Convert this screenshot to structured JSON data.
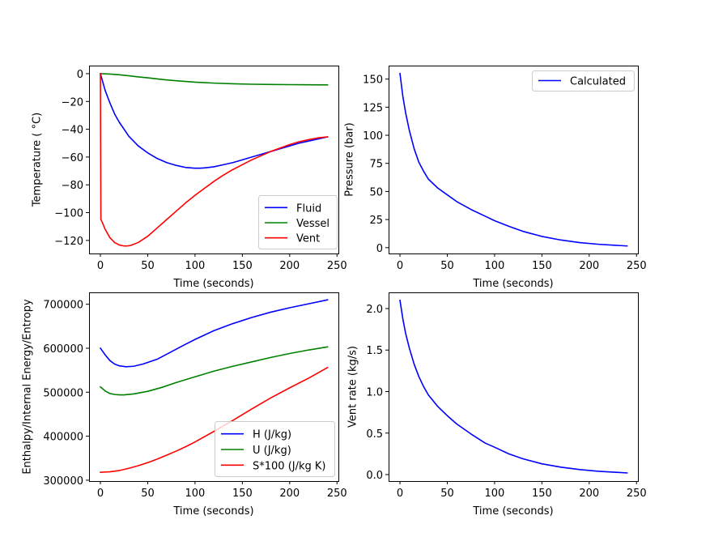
{
  "figure": {
    "background": "#ffffff"
  },
  "chart_data": [
    {
      "id": "temperature",
      "type": "line",
      "title": "",
      "xlabel": "Time (seconds)",
      "ylabel": "Temperature ( °C)",
      "xlim": [
        -12,
        251.5
      ],
      "ylim": [
        -129.4,
        5.8
      ],
      "xticks": [
        0,
        50,
        100,
        150,
        200,
        250
      ],
      "xtick_labels": [
        "0",
        "50",
        "100",
        "150",
        "200",
        "250"
      ],
      "yticks": [
        0,
        -20,
        -40,
        -60,
        -80,
        -100,
        -120
      ],
      "ytick_labels": [
        "0",
        "−20",
        "−40",
        "−60",
        "−80",
        "−100",
        "−120"
      ],
      "grid": false,
      "legend": {
        "placement": "lower-right"
      },
      "series": [
        {
          "name": "Fluid",
          "color": "#0000ff",
          "x": [
            0,
            5,
            10,
            15,
            20,
            25,
            30,
            40,
            50,
            60,
            70,
            80,
            90,
            100,
            105,
            110,
            120,
            130,
            140,
            150,
            160,
            170,
            180,
            190,
            200,
            210,
            220,
            230,
            240
          ],
          "y": [
            0,
            -12,
            -21,
            -29,
            -35,
            -40,
            -45,
            -52,
            -57,
            -61,
            -64,
            -66,
            -67.5,
            -68,
            -68,
            -67.8,
            -67,
            -65.5,
            -64,
            -62,
            -60,
            -58,
            -56,
            -54,
            -52,
            -50,
            -48.5,
            -47,
            -45.5
          ]
        },
        {
          "name": "Vessel",
          "color": "#008000",
          "x": [
            0,
            10,
            20,
            30,
            40,
            50,
            60,
            70,
            80,
            90,
            100,
            120,
            140,
            160,
            180,
            200,
            220,
            240
          ],
          "y": [
            0,
            -0.3,
            -0.8,
            -1.5,
            -2.3,
            -3,
            -3.8,
            -4.5,
            -5.1,
            -5.6,
            -6.1,
            -6.8,
            -7.3,
            -7.6,
            -7.8,
            -7.9,
            -8,
            -8.1
          ]
        },
        {
          "name": "Vent",
          "color": "#ff0000",
          "x": [
            0,
            0.5,
            2,
            5,
            10,
            15,
            20,
            25,
            28,
            32,
            40,
            50,
            60,
            70,
            80,
            90,
            100,
            110,
            120,
            130,
            140,
            150,
            160,
            170,
            180,
            190,
            200,
            210,
            220,
            230,
            240
          ],
          "y": [
            0,
            -105,
            -107,
            -112,
            -118,
            -121.5,
            -123.3,
            -124,
            -124,
            -123.6,
            -121.5,
            -117,
            -111,
            -105,
            -99,
            -93,
            -87.5,
            -82.5,
            -77.5,
            -73,
            -69,
            -65.5,
            -62,
            -59,
            -56,
            -53.5,
            -51,
            -49,
            -47.5,
            -46.2,
            -45.5
          ]
        }
      ]
    },
    {
      "id": "pressure",
      "type": "line",
      "title": "",
      "xlabel": "Time (seconds)",
      "ylabel": "Pressure (bar)",
      "xlim": [
        -12,
        251.5
      ],
      "ylim": [
        -5.2,
        162
      ],
      "xticks": [
        0,
        50,
        100,
        150,
        200,
        250
      ],
      "xtick_labels": [
        "0",
        "50",
        "100",
        "150",
        "200",
        "250"
      ],
      "yticks": [
        0,
        25,
        50,
        75,
        100,
        125,
        150
      ],
      "ytick_labels": [
        "0",
        "25",
        "50",
        "75",
        "100",
        "125",
        "150"
      ],
      "grid": false,
      "legend": {
        "placement": "upper-right"
      },
      "series": [
        {
          "name": "Calculated",
          "color": "#0000ff",
          "x": [
            0,
            3,
            6,
            10,
            15,
            20,
            25,
            30,
            40,
            50,
            60,
            75,
            90,
            100,
            115,
            130,
            150,
            170,
            190,
            210,
            225,
            240
          ],
          "y": [
            155,
            135,
            120,
            104,
            88,
            76,
            68,
            61,
            53,
            47,
            41,
            34,
            28,
            24,
            19,
            14.5,
            10,
            6.8,
            4.5,
            3,
            2.2,
            1.5
          ]
        }
      ]
    },
    {
      "id": "energy",
      "type": "line",
      "title": "",
      "xlabel": "Time (seconds)",
      "ylabel": "Enthalpy/Internal Energy/Entropy",
      "xlim": [
        -12,
        251.5
      ],
      "ylim": [
        298000,
        727000
      ],
      "xticks": [
        0,
        50,
        100,
        150,
        200,
        250
      ],
      "xtick_labels": [
        "0",
        "50",
        "100",
        "150",
        "200",
        "250"
      ],
      "yticks": [
        300000,
        400000,
        500000,
        600000,
        700000
      ],
      "ytick_labels": [
        "300000",
        "400000",
        "500000",
        "600000",
        "700000"
      ],
      "grid": false,
      "legend": {
        "placement": "lower-right"
      },
      "series": [
        {
          "name": "H (J/kg)",
          "color": "#0000ff",
          "x": [
            0,
            5,
            10,
            15,
            20,
            27,
            35,
            45,
            60,
            75,
            90,
            100,
            120,
            140,
            160,
            180,
            200,
            220,
            240
          ],
          "y": [
            600000,
            585000,
            572000,
            564000,
            560000,
            558000,
            559000,
            564000,
            575000,
            592000,
            609000,
            620000,
            640000,
            656000,
            670000,
            682000,
            692000,
            701000,
            710000
          ]
        },
        {
          "name": "U (J/kg)",
          "color": "#008000",
          "x": [
            0,
            5,
            10,
            15,
            20,
            25,
            35,
            50,
            65,
            80,
            100,
            120,
            140,
            160,
            180,
            200,
            220,
            240
          ],
          "y": [
            512000,
            503000,
            497000,
            495000,
            494000,
            494000,
            496000,
            502000,
            511000,
            522000,
            535000,
            548000,
            559000,
            569000,
            579000,
            588000,
            596000,
            603000
          ]
        },
        {
          "name": "S*100 (J/kg K)",
          "color": "#ff0000",
          "x": [
            0,
            10,
            20,
            30,
            40,
            50,
            60,
            70,
            80,
            90,
            100,
            120,
            140,
            160,
            180,
            200,
            220,
            240
          ],
          "y": [
            318000,
            319000,
            322000,
            327000,
            333000,
            340000,
            348000,
            357000,
            366000,
            376000,
            387000,
            411000,
            436000,
            462000,
            487000,
            510000,
            532000,
            556000
          ]
        }
      ]
    },
    {
      "id": "vent-rate",
      "type": "line",
      "title": "",
      "xlabel": "Time (seconds)",
      "ylabel": "Vent rate (kg/s)",
      "xlim": [
        -12,
        251.5
      ],
      "ylim": [
        -0.078,
        2.195
      ],
      "xticks": [
        0,
        50,
        100,
        150,
        200,
        250
      ],
      "xtick_labels": [
        "0",
        "50",
        "100",
        "150",
        "200",
        "250"
      ],
      "yticks": [
        0.0,
        0.5,
        1.0,
        1.5,
        2.0
      ],
      "ytick_labels": [
        "0.0",
        "0.5",
        "1.0",
        "1.5",
        "2.0"
      ],
      "grid": false,
      "legend": null,
      "series": [
        {
          "name": "Vent rate",
          "color": "#0000ff",
          "x": [
            0,
            3,
            6,
            10,
            15,
            20,
            25,
            30,
            40,
            50,
            60,
            75,
            90,
            100,
            115,
            130,
            150,
            170,
            190,
            210,
            225,
            240
          ],
          "y": [
            2.1,
            1.88,
            1.7,
            1.52,
            1.33,
            1.18,
            1.06,
            0.96,
            0.82,
            0.71,
            0.61,
            0.49,
            0.38,
            0.33,
            0.25,
            0.19,
            0.13,
            0.09,
            0.06,
            0.04,
            0.03,
            0.02
          ]
        }
      ]
    }
  ]
}
